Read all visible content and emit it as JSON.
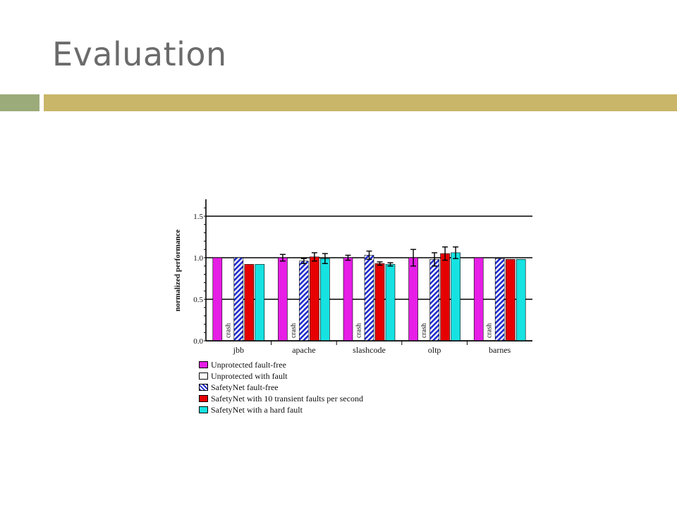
{
  "slide": {
    "title": "Evaluation"
  },
  "chart_data": {
    "type": "bar",
    "ylabel": "normalized performance",
    "ylim": [
      0,
      1.5
    ],
    "yticks": [
      "0.0",
      "0.5",
      "1.0",
      "1.5"
    ],
    "categories": [
      "jbb",
      "apache",
      "slashcode",
      "oltp",
      "barnes"
    ],
    "series": [
      {
        "name": "Unprotected fault-free",
        "color": "#e61ee6",
        "pattern": "solid",
        "values": [
          1.0,
          1.0,
          1.0,
          1.0,
          1.0
        ],
        "errors": [
          0.01,
          0.04,
          0.03,
          0.1,
          0.01
        ]
      },
      {
        "name": "Unprotected with fault",
        "color": "#ffffff",
        "pattern": "solid",
        "values": [
          0,
          0,
          0,
          0,
          0
        ],
        "errors": [
          0,
          0,
          0,
          0,
          0
        ],
        "labels": [
          "crash",
          "crash",
          "crash",
          "crash",
          "crash"
        ]
      },
      {
        "name": "SafetyNet fault-free",
        "color": "#1e2acc",
        "pattern": "hatch",
        "values": [
          1.0,
          0.96,
          1.03,
          0.98,
          0.99
        ],
        "errors": [
          0.01,
          0.03,
          0.05,
          0.08,
          0.01
        ]
      },
      {
        "name": "SafetyNet with 10 transient faults per second",
        "color": "#e60000",
        "pattern": "solid",
        "values": [
          0.92,
          1.01,
          0.93,
          1.05,
          0.98
        ],
        "errors": [
          0.01,
          0.05,
          0.02,
          0.08,
          0.01
        ]
      },
      {
        "name": "SafetyNet with a hard fault",
        "color": "#16e2e2",
        "pattern": "solid",
        "values": [
          0.92,
          0.99,
          0.92,
          1.06,
          0.98
        ],
        "errors": [
          0.01,
          0.06,
          0.02,
          0.07,
          0.01
        ]
      }
    ],
    "grid": true,
    "legend_position": "bottom-left"
  }
}
